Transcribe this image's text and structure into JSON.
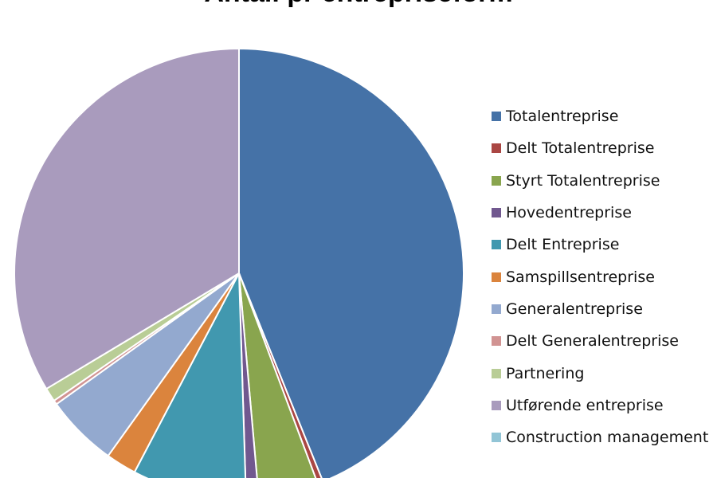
{
  "chart_data": {
    "type": "pie",
    "title": "Antall pr entrepriseform",
    "start_angle_deg": 0,
    "direction": "clockwise",
    "legend_position": "right",
    "slices": [
      {
        "label": "Totalentreprise",
        "value": 43.9,
        "color": "#4572A7"
      },
      {
        "label": "Delt Totalentreprise",
        "value": 0.4,
        "color": "#AA4643"
      },
      {
        "label": "Styrt Totalentreprise",
        "value": 4.3,
        "color": "#89A54E"
      },
      {
        "label": "Hovedentreprise",
        "value": 0.9,
        "color": "#71588F"
      },
      {
        "label": "Delt Entreprise",
        "value": 8.2,
        "color": "#4198AF"
      },
      {
        "label": "Samspillsentreprise",
        "value": 2.2,
        "color": "#DB843D"
      },
      {
        "label": "Generalentreprise",
        "value": 5.2,
        "color": "#93A9CF"
      },
      {
        "label": "Delt Generalentreprise",
        "value": 0.3,
        "color": "#D19392"
      },
      {
        "label": "Partnering",
        "value": 1.0,
        "color": "#B9CD96"
      },
      {
        "label": "Utførende entreprise",
        "value": 33.6,
        "color": "#A99BBD"
      },
      {
        "label": "Construction management",
        "value": 0.0,
        "color": "#92C5D6"
      }
    ]
  }
}
